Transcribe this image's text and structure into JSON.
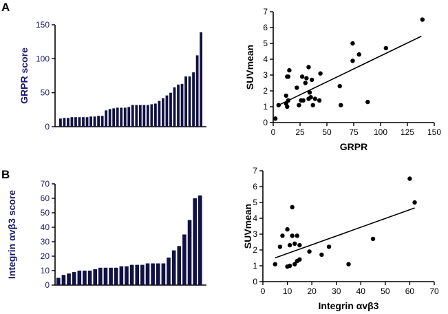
{
  "panels": {
    "a": "A",
    "b": "B"
  },
  "chart_data": [
    {
      "type": "bar",
      "id": "grpr-bar",
      "ylabel": "GRPR score",
      "ylim": [
        0,
        150
      ],
      "yticks": [
        0,
        50,
        100,
        150
      ],
      "xlabel": "",
      "values": [
        12,
        13,
        13,
        14,
        14,
        14,
        14,
        14,
        15,
        15,
        16,
        16,
        24,
        26,
        27,
        28,
        28,
        28,
        29,
        32,
        32,
        32,
        32,
        32,
        33,
        34,
        38,
        42,
        46,
        50,
        58,
        62,
        63,
        74,
        74,
        80,
        105,
        139
      ]
    },
    {
      "type": "scatter",
      "id": "grpr-scatter",
      "xlabel": "GRPR",
      "ylabel": "SUVmean",
      "xlim": [
        0,
        150
      ],
      "ylim": [
        0,
        7
      ],
      "xticks": [
        0,
        25,
        50,
        75,
        100,
        125,
        150
      ],
      "yticks": [
        0,
        1,
        2,
        3,
        4,
        5,
        6,
        7
      ],
      "points": [
        [
          2,
          0.25
        ],
        [
          5,
          1.1
        ],
        [
          12,
          1.2
        ],
        [
          13,
          1.0
        ],
        [
          14,
          1.4
        ],
        [
          12,
          1.7
        ],
        [
          14,
          2.9
        ],
        [
          15,
          3.3
        ],
        [
          13,
          2.9
        ],
        [
          22,
          2.2
        ],
        [
          24,
          1.1
        ],
        [
          26,
          1.4
        ],
        [
          28,
          1.4
        ],
        [
          27,
          2.9
        ],
        [
          30,
          2.5
        ],
        [
          31,
          2.8
        ],
        [
          33,
          3.5
        ],
        [
          33,
          1.5
        ],
        [
          34,
          1.9
        ],
        [
          35,
          1.6
        ],
        [
          36,
          2.7
        ],
        [
          37,
          1.1
        ],
        [
          39,
          1.5
        ],
        [
          43,
          1.4
        ],
        [
          44,
          3.1
        ],
        [
          62,
          2.3
        ],
        [
          63,
          1.1
        ],
        [
          74,
          3.9
        ],
        [
          74,
          5.0
        ],
        [
          80,
          4.3
        ],
        [
          88,
          1.3
        ],
        [
          105,
          4.7
        ],
        [
          139,
          6.5
        ]
      ],
      "fit": {
        "x": [
          5,
          138
        ],
        "y": [
          1.1,
          5.45
        ]
      }
    },
    {
      "type": "bar",
      "id": "integrin-bar",
      "ylabel": "Integrin αvβ3 score",
      "ylim": [
        0,
        70
      ],
      "yticks": [
        0,
        10,
        20,
        30,
        40,
        50,
        60,
        70
      ],
      "xlabel": "",
      "values": [
        5,
        7,
        8,
        9,
        10,
        10,
        10,
        11,
        12,
        12,
        12,
        12,
        13,
        13,
        14,
        14,
        14,
        15,
        15,
        15,
        15,
        19,
        24,
        27,
        35,
        45,
        60,
        62
      ]
    },
    {
      "type": "scatter",
      "id": "integrin-scatter",
      "xlabel": "Integrin αvβ3",
      "ylabel": "SUVmean",
      "xlim": [
        0,
        70
      ],
      "ylim": [
        0,
        7
      ],
      "xticks": [
        0,
        10,
        20,
        30,
        40,
        50,
        60,
        70
      ],
      "yticks": [
        0,
        1,
        2,
        3,
        4,
        5,
        6,
        7
      ],
      "points": [
        [
          5,
          1.1
        ],
        [
          7,
          2.2
        ],
        [
          8,
          2.9
        ],
        [
          10,
          3.3
        ],
        [
          10,
          0.95
        ],
        [
          11,
          1.0
        ],
        [
          11,
          2.3
        ],
        [
          12,
          4.7
        ],
        [
          12,
          2.9
        ],
        [
          13,
          1.1
        ],
        [
          13,
          2.4
        ],
        [
          14,
          1.3
        ],
        [
          14,
          2.9
        ],
        [
          15,
          2.3
        ],
        [
          15,
          1.4
        ],
        [
          19,
          1.9
        ],
        [
          24,
          1.7
        ],
        [
          27,
          2.2
        ],
        [
          35,
          1.1
        ],
        [
          45,
          2.7
        ],
        [
          60,
          6.5
        ],
        [
          62,
          5.0
        ]
      ],
      "fit": {
        "x": [
          5,
          62
        ],
        "y": [
          1.5,
          4.65
        ]
      }
    }
  ]
}
